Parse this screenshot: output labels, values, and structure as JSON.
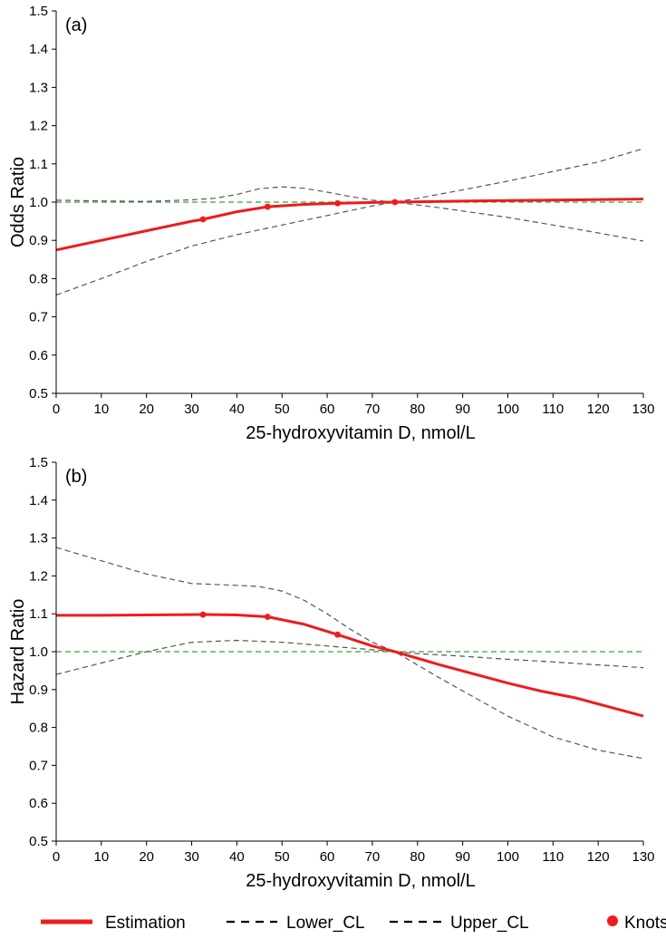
{
  "colors": {
    "estimation": "#ee1c1c",
    "confidence": "#555555",
    "reference": "#3aa03a",
    "axis": "#000000"
  },
  "legend": {
    "estimation": "Estimation",
    "lower": "Lower_CL",
    "upper": "Upper_CL",
    "knots": "Knots"
  },
  "chart_data": [
    {
      "type": "line",
      "panel_label": "(a)",
      "ylabel": "Odds Ratio",
      "xlabel": "25-hydroxyvitamin D, nmol/L",
      "xlim": [
        0,
        130
      ],
      "ylim": [
        0.5,
        1.5
      ],
      "xticks": [
        0,
        10,
        20,
        30,
        40,
        50,
        60,
        70,
        80,
        90,
        100,
        110,
        120,
        130
      ],
      "yticks": [
        0.5,
        0.6,
        0.7,
        0.8,
        0.9,
        1.0,
        1.1,
        1.2,
        1.3,
        1.4,
        1.5
      ],
      "ytick_labels": [
        "0.5",
        "0.6",
        "0.7",
        "0.8",
        "0.9",
        "1.0",
        "1.1",
        "1.2",
        "1.3",
        "1.4",
        "1.5"
      ],
      "reference_line": 1.0,
      "series": [
        {
          "name": "Estimation",
          "x": [
            0,
            10,
            20,
            30,
            32.5,
            40,
            46.8,
            55,
            62.3,
            70,
            75,
            85,
            100,
            115,
            130
          ],
          "y": [
            0.875,
            0.9,
            0.925,
            0.95,
            0.955,
            0.975,
            0.988,
            0.994,
            0.997,
            0.999,
            1.0,
            1.002,
            1.004,
            1.006,
            1.008
          ]
        },
        {
          "name": "Lower_CL",
          "x": [
            0,
            10,
            20,
            30,
            40,
            50,
            60,
            70,
            75,
            80,
            90,
            100,
            110,
            120,
            130
          ],
          "y": [
            0.757,
            0.8,
            0.845,
            0.885,
            0.915,
            0.94,
            0.965,
            0.99,
            1.0,
            1.01,
            1.032,
            1.055,
            1.08,
            1.105,
            1.14
          ]
        },
        {
          "name": "Upper_CL",
          "x": [
            0,
            10,
            20,
            30,
            35,
            40,
            45,
            50,
            55,
            60,
            65,
            70,
            75,
            85,
            100,
            115,
            130
          ],
          "y": [
            1.005,
            1.003,
            1.002,
            1.006,
            1.01,
            1.02,
            1.035,
            1.04,
            1.036,
            1.026,
            1.015,
            1.005,
            1.0,
            0.985,
            0.96,
            0.93,
            0.898
          ]
        }
      ],
      "knots": {
        "x": [
          32.5,
          46.8,
          62.3,
          75
        ],
        "y": [
          0.955,
          0.988,
          0.997,
          1.0
        ]
      }
    },
    {
      "type": "line",
      "panel_label": "(b)",
      "ylabel": "Hazard Ratio",
      "xlabel": "25-hydroxyvitamin D, nmol/L",
      "xlim": [
        0,
        130
      ],
      "ylim": [
        0.5,
        1.5
      ],
      "xticks": [
        0,
        10,
        20,
        30,
        40,
        50,
        60,
        70,
        80,
        90,
        100,
        110,
        120,
        130
      ],
      "yticks": [
        0.5,
        0.6,
        0.7,
        0.8,
        0.9,
        1.0,
        1.1,
        1.2,
        1.3,
        1.4,
        1.5
      ],
      "ytick_labels": [
        "0.5",
        "0.6",
        "0.7",
        "0.8",
        "0.9",
        "1.0",
        "1.1",
        "1.2",
        "1.3",
        "1.4",
        "1.5"
      ],
      "reference_line": 1.0,
      "series": [
        {
          "name": "Estimation",
          "x": [
            0,
            10,
            20,
            32.5,
            40,
            46.8,
            55,
            62.3,
            70,
            75,
            85,
            100,
            107,
            115,
            130
          ],
          "y": [
            1.096,
            1.096,
            1.097,
            1.098,
            1.097,
            1.092,
            1.072,
            1.045,
            1.015,
            1.0,
            0.965,
            0.917,
            0.897,
            0.878,
            0.83
          ]
        },
        {
          "name": "Lower_CL",
          "x": [
            0,
            10,
            20,
            30,
            40,
            50,
            60,
            70,
            75,
            80,
            90,
            100,
            110,
            120,
            130
          ],
          "y": [
            0.94,
            0.97,
            1.0,
            1.025,
            1.03,
            1.025,
            1.015,
            1.005,
            1.0,
            0.995,
            0.988,
            0.98,
            0.973,
            0.965,
            0.958
          ]
        },
        {
          "name": "Upper_CL",
          "x": [
            0,
            10,
            20,
            30,
            40,
            45,
            50,
            55,
            60,
            65,
            70,
            75,
            85,
            100,
            110,
            120,
            130
          ],
          "y": [
            1.275,
            1.24,
            1.205,
            1.18,
            1.175,
            1.172,
            1.16,
            1.135,
            1.1,
            1.06,
            1.025,
            1.0,
            0.93,
            0.83,
            0.775,
            0.74,
            0.718
          ]
        }
      ],
      "knots": {
        "x": [
          32.5,
          46.8,
          62.3
        ],
        "y": [
          1.098,
          1.092,
          1.045
        ]
      }
    }
  ]
}
